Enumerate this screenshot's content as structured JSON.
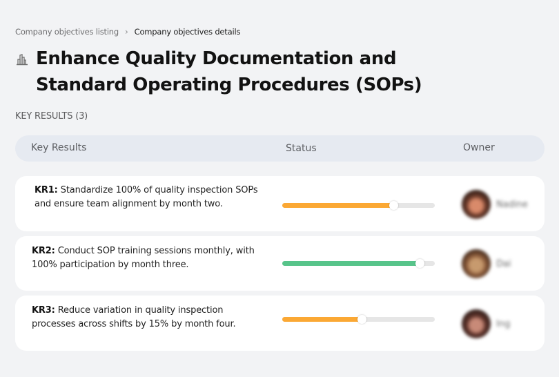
{
  "breadcrumb": {
    "parent": "Company objectives listing",
    "separator": "›",
    "current": "Company objectives details"
  },
  "objective": {
    "icon": "building-icon",
    "title": "Enhance Quality Documentation and Standard Operating Procedures (SOPs)"
  },
  "key_results_section": {
    "label": "KEY RESULTS (3)"
  },
  "table": {
    "headers": {
      "key_results": "Key Results",
      "status": "Status",
      "owner": "Owner"
    },
    "rows": [
      {
        "id": "KR1:",
        "text": " Standardize 100% of quality inspection SOPs and ensure team alignment by month two.",
        "progress": 73,
        "progress_color": "#fba834",
        "owner": "Nadine",
        "avatar_colors": [
          "#6b3a2a",
          "#d98a6a",
          "#2a1a14"
        ]
      },
      {
        "id": "KR2:",
        "text": " Conduct SOP training sessions monthly, with 100% participation by month three.",
        "progress": 90,
        "progress_color": "#57c48a",
        "owner": "Dai",
        "avatar_colors": [
          "#8a5a3a",
          "#c79a6e",
          "#3a2418"
        ]
      },
      {
        "id": "KR3:",
        "text": " Reduce variation in quality inspection processes across shifts by 15% by month four.",
        "progress": 52,
        "progress_color": "#fba834",
        "owner": "Ing",
        "avatar_colors": [
          "#5a3028",
          "#c88a78",
          "#2e1e1a"
        ]
      }
    ]
  }
}
